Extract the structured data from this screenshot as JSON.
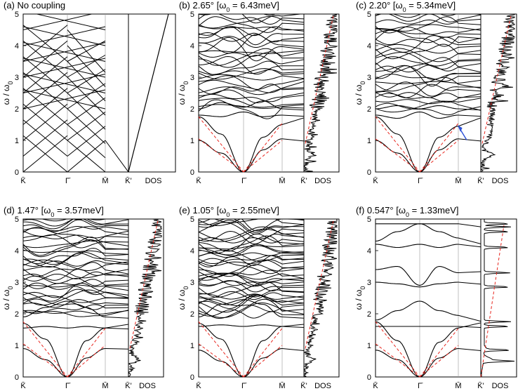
{
  "chart_data": [
    {
      "id": "a",
      "type": "line",
      "title": "(a) No coupling",
      "ylabel": "ω / ω0",
      "ylabel_main": "ω / ω",
      "ylabel_sub": "0",
      "ylim": [
        0,
        5
      ],
      "yticks": [
        "0",
        "1",
        "2",
        "3",
        "4",
        "5"
      ],
      "xlabels": [
        "K̄",
        "Γ̄",
        "M̄",
        "K̄'"
      ],
      "dos_label": "DOS",
      "has_dos_noise": false,
      "red_dashed": false,
      "bands": [
        {
          "name": "K-Γ branch 1",
          "x": [
            0,
            1
          ],
          "y": [
            1.15,
            0.0
          ]
        },
        {
          "name": "K-Γ branch 2",
          "x": [
            0,
            1
          ],
          "y": [
            2.3,
            1.15
          ]
        },
        {
          "name": "K-Γ branch 3",
          "x": [
            0,
            1
          ],
          "y": [
            3.05,
            2.0
          ]
        },
        {
          "name": "K-Γ branch 4",
          "x": [
            0,
            1
          ],
          "y": [
            4.0,
            3.1
          ]
        },
        {
          "name": "Γ-M branch 1",
          "x": [
            1,
            2
          ],
          "y": [
            0.0,
            1.0
          ]
        },
        {
          "name": "Γ-M branch 2",
          "x": [
            1,
            2
          ],
          "y": [
            2.0,
            1.5
          ]
        },
        {
          "name": "Γ-M branch 3",
          "x": [
            1,
            2
          ],
          "y": [
            3.0,
            2.6
          ]
        },
        {
          "name": "Γ-M branch 4",
          "x": [
            1,
            2
          ],
          "y": [
            4.0,
            3.6
          ]
        }
      ],
      "dos_points": [
        {
          "x": 0,
          "y": 0
        },
        {
          "x": 1,
          "y": 5
        }
      ]
    },
    {
      "id": "b",
      "type": "line",
      "title": "(b) 2.65° [ω0 = 6.43meV]",
      "title_parts": [
        "(b) 2.65° [ω",
        "0",
        " = 6.43meV]"
      ],
      "ylabel": "ω / ω0",
      "ylabel_main": "ω / ω",
      "ylabel_sub": "0",
      "ylim": [
        0,
        5
      ],
      "yticks": [
        "0",
        "1",
        "2",
        "3",
        "4",
        "5"
      ],
      "xlabels": [
        "K̄",
        "Γ̄",
        "M̄",
        "K̄'"
      ],
      "dos_label": "DOS",
      "has_dos_noise": true,
      "red_dashed": true,
      "red_line_slopes": [
        1.75,
        1.0
      ],
      "low_bands": [
        {
          "name": "acoustic 1",
          "x": [
            0,
            0.5,
            1,
            1.5,
            2
          ],
          "y": [
            1.0,
            0.6,
            0.0,
            0.7,
            1.05
          ]
        },
        {
          "name": "acoustic 2",
          "x": [
            0,
            0.5,
            1,
            1.5,
            2
          ],
          "y": [
            1.75,
            1.2,
            0.0,
            1.1,
            1.5
          ]
        },
        {
          "name": "optical 1",
          "x": [
            0,
            0.5,
            1,
            1.5,
            2
          ],
          "y": [
            1.8,
            1.75,
            1.9,
            1.75,
            1.8
          ]
        },
        {
          "name": "optical 2",
          "x": [
            0,
            0.5,
            1,
            1.5,
            2
          ],
          "y": [
            2.0,
            2.2,
            2.05,
            2.25,
            2.0
          ]
        }
      ],
      "dos_trend": {
        "start": 0,
        "end": 5
      }
    },
    {
      "id": "c",
      "type": "line",
      "title": "(c) 2.20° [ω0 = 5.34meV]",
      "title_parts": [
        "(c) 2.20° [ω",
        "0",
        " = 5.34meV]"
      ],
      "ylabel": "ω / ω0",
      "ylabel_main": "ω / ω",
      "ylabel_sub": "0",
      "ylim": [
        0,
        5
      ],
      "yticks": [
        "0",
        "1",
        "2",
        "3",
        "4",
        "5"
      ],
      "xlabels": [
        "K̄",
        "Γ̄",
        "M̄",
        "K̄'"
      ],
      "dos_label": "DOS",
      "has_dos_noise": true,
      "red_dashed": true,
      "blue_arrow": true,
      "red_line_slopes": [
        1.75,
        1.0
      ],
      "low_bands": [
        {
          "name": "acoustic 1",
          "x": [
            0,
            0.5,
            1,
            1.5,
            2
          ],
          "y": [
            1.0,
            0.6,
            0.0,
            0.7,
            1.05
          ]
        },
        {
          "name": "acoustic 2",
          "x": [
            0,
            0.5,
            1,
            1.5,
            2
          ],
          "y": [
            1.75,
            1.2,
            0.0,
            1.1,
            1.45
          ]
        },
        {
          "name": "optical 1",
          "x": [
            0,
            0.5,
            1,
            1.5,
            2
          ],
          "y": [
            1.8,
            1.7,
            1.9,
            1.7,
            1.8
          ]
        },
        {
          "name": "optical 2",
          "x": [
            0,
            0.5,
            1,
            1.5,
            2
          ],
          "y": [
            2.0,
            2.1,
            2.0,
            2.1,
            2.0
          ]
        }
      ],
      "dos_trend": {
        "start": 0,
        "end": 5
      }
    },
    {
      "id": "d",
      "type": "line",
      "title": "(d) 1.47° [ω0 = 3.57meV]",
      "title_parts": [
        "(d) 1.47° [ω",
        "0",
        " = 3.57meV]"
      ],
      "ylabel": "ω / ω0",
      "ylabel_main": "ω / ω",
      "ylabel_sub": "0",
      "ylim": [
        0,
        5
      ],
      "yticks": [
        "0",
        "1",
        "2",
        "3",
        "4",
        "5"
      ],
      "xlabels": [
        "K̄",
        "Γ̄",
        "M̄",
        "K̄'"
      ],
      "dos_label": "DOS",
      "has_dos_noise": true,
      "red_dashed": true,
      "red_line_slopes": [
        1.75,
        1.0
      ],
      "low_bands": [
        {
          "name": "acoustic 1",
          "x": [
            0,
            0.5,
            1,
            1.5,
            2
          ],
          "y": [
            0.9,
            0.55,
            0.0,
            0.6,
            0.9
          ]
        },
        {
          "name": "acoustic 2",
          "x": [
            0,
            0.5,
            1,
            1.5,
            2
          ],
          "y": [
            1.7,
            1.2,
            0.0,
            1.15,
            1.55
          ]
        },
        {
          "name": "optical 1",
          "x": [
            0,
            0.5,
            1,
            1.5,
            2
          ],
          "y": [
            1.55,
            1.6,
            1.55,
            1.6,
            1.55
          ]
        },
        {
          "name": "optical 2",
          "x": [
            0,
            0.5,
            1,
            1.5,
            2
          ],
          "y": [
            1.9,
            2.2,
            2.4,
            2.2,
            1.9
          ]
        }
      ],
      "dos_trend": {
        "start": 0,
        "end": 5
      }
    },
    {
      "id": "e",
      "type": "line",
      "title": "(e) 1.05° [ω0 = 2.55meV]",
      "title_parts": [
        "(e) 1.05° [ω",
        "0",
        " = 2.55meV]"
      ],
      "ylabel": "ω / ω0",
      "ylabel_main": "ω / ω",
      "ylabel_sub": "0",
      "ylim": [
        0,
        5
      ],
      "yticks": [
        "0",
        "1",
        "2",
        "3",
        "4",
        "5"
      ],
      "xlabels": [
        "K̄",
        "Γ̄",
        "M̄",
        "K̄'"
      ],
      "dos_label": "DOS",
      "has_dos_noise": true,
      "red_dashed": true,
      "red_line_slopes": [
        1.75,
        1.0
      ],
      "low_bands": [
        {
          "name": "acoustic 1",
          "x": [
            0,
            0.5,
            1,
            1.5,
            2
          ],
          "y": [
            0.85,
            0.5,
            0.0,
            0.6,
            0.9
          ]
        },
        {
          "name": "acoustic 2",
          "x": [
            0,
            0.5,
            1,
            1.5,
            2
          ],
          "y": [
            1.7,
            1.2,
            0.0,
            1.15,
            1.6
          ]
        },
        {
          "name": "optical 1",
          "x": [
            0,
            0.5,
            1,
            1.5,
            2
          ],
          "y": [
            1.6,
            1.65,
            1.6,
            1.65,
            1.6
          ]
        },
        {
          "name": "optical 2",
          "x": [
            0,
            0.5,
            1,
            1.5,
            2
          ],
          "y": [
            1.9,
            2.3,
            2.45,
            2.3,
            1.9
          ]
        }
      ],
      "dos_trend": {
        "start": 0,
        "end": 5
      }
    },
    {
      "id": "f",
      "type": "line",
      "title": "(f) 0.547° [ω0 = 1.33meV]",
      "title_parts": [
        "(f) 0.547° [ω",
        "0",
        " = 1.33meV]"
      ],
      "ylabel": "ω / ω0",
      "ylabel_main": "ω / ω",
      "ylabel_sub": "0",
      "ylim": [
        0,
        5
      ],
      "yticks": [
        "0",
        "1",
        "2",
        "3",
        "4",
        "5"
      ],
      "xlabels": [
        "K̄",
        "Γ̄",
        "M̄",
        "K̄'"
      ],
      "dos_label": "DOS",
      "has_dos_noise": true,
      "red_dashed": true,
      "red_line_slopes": [
        1.75,
        1.0
      ],
      "bands": [
        {
          "name": "acoustic 1",
          "x": [
            0,
            0.5,
            1,
            1.5,
            2
          ],
          "y": [
            0.85,
            0.55,
            0.0,
            0.6,
            0.9
          ]
        },
        {
          "name": "acoustic 2",
          "x": [
            0,
            0.5,
            1,
            1.5,
            2
          ],
          "y": [
            1.75,
            1.15,
            0.0,
            1.1,
            1.55
          ]
        },
        {
          "name": "flat 1.6",
          "x": [
            0,
            0.5,
            1,
            1.5,
            2
          ],
          "y": [
            1.6,
            1.6,
            1.6,
            1.6,
            1.6
          ]
        },
        {
          "name": "band 2.0",
          "x": [
            0,
            0.5,
            1,
            1.5,
            2
          ],
          "y": [
            1.8,
            2.1,
            2.4,
            2.1,
            1.95
          ]
        },
        {
          "name": "band 2.85",
          "x": [
            0,
            0.5,
            1,
            1.5,
            2
          ],
          "y": [
            3.0,
            2.95,
            2.85,
            2.95,
            3.0
          ]
        },
        {
          "name": "band 3.5",
          "x": [
            0,
            0.5,
            1,
            1.5,
            2
          ],
          "y": [
            3.4,
            3.5,
            2.9,
            3.5,
            3.3
          ]
        },
        {
          "name": "band 4.2",
          "x": [
            0,
            0.5,
            1,
            1.5,
            2
          ],
          "y": [
            4.2,
            4.1,
            4.2,
            4.1,
            4.2
          ]
        },
        {
          "name": "band 4.7",
          "x": [
            0,
            0.5,
            1,
            1.5,
            2
          ],
          "y": [
            4.3,
            4.6,
            4.85,
            4.6,
            4.4
          ]
        },
        {
          "name": "flat 4.85",
          "x": [
            0,
            0.5,
            1,
            1.5,
            2
          ],
          "y": [
            4.85,
            4.85,
            4.85,
            4.85,
            4.85
          ]
        }
      ],
      "dos_peaks": [
        0.5,
        0.85,
        1.6,
        1.75,
        2.85,
        3.3,
        4.1,
        4.6,
        4.75,
        4.85
      ],
      "dos_trend": {
        "start": 0,
        "end": 5
      }
    }
  ],
  "colors": {
    "band": "#000000",
    "red_dashed": "#e8251d",
    "blue_arrow": "#2a4fd6",
    "divider": "#999999"
  }
}
